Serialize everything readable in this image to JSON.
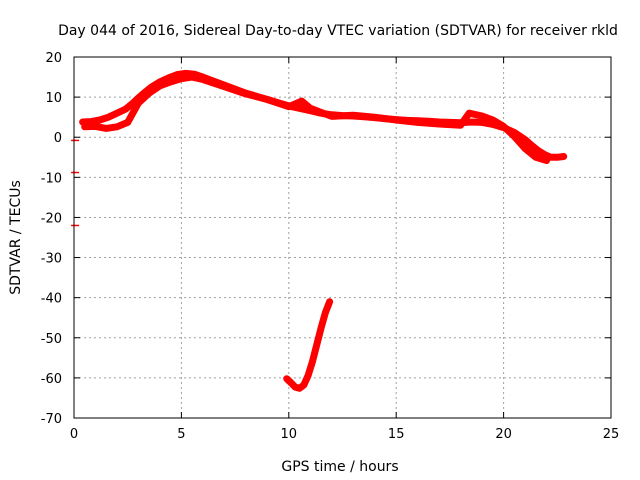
{
  "chart_data": {
    "type": "line",
    "title": "Day 044 of 2016, Sidereal Day-to-day VTEC variation (SDTVAR) for receiver rkld",
    "xlabel": "GPS time / hours",
    "ylabel": "SDTVAR / TECUs",
    "xlim": [
      0,
      25
    ],
    "ylim": [
      -70,
      20
    ],
    "xticks": [
      0,
      5,
      10,
      15,
      20,
      25
    ],
    "yticks": [
      -70,
      -60,
      -50,
      -40,
      -30,
      -20,
      -10,
      0,
      10,
      20
    ],
    "grid": true,
    "series_color": "#ff0000",
    "series": [
      {
        "name": "main-trace-a",
        "x": [
          0.4,
          0.8,
          1.2,
          1.6,
          2.0,
          2.4,
          2.7,
          3.0,
          3.3,
          3.6,
          4.0,
          4.4,
          4.8,
          5.2,
          5.6,
          6.0,
          6.5,
          7.0,
          7.5,
          8.0,
          8.5,
          9.0,
          9.5,
          10.0,
          10.5,
          11.0,
          11.5,
          12.0,
          12.5,
          13.0,
          13.5,
          14.0,
          14.5,
          15.0,
          15.5,
          16.0,
          16.5,
          17.0,
          17.5,
          18.0,
          18.5,
          19.0,
          19.5,
          20.0,
          20.5,
          21.0,
          21.3,
          21.6,
          21.9,
          22.2,
          22.5,
          22.8
        ],
        "y": [
          3.8,
          3.9,
          4.3,
          5.0,
          6.0,
          7.0,
          8.3,
          9.8,
          11.2,
          12.5,
          13.8,
          14.8,
          15.6,
          15.9,
          15.7,
          15.0,
          14.0,
          13.0,
          12.0,
          11.0,
          10.2,
          9.4,
          8.6,
          7.8,
          7.2,
          6.6,
          6.0,
          5.6,
          5.4,
          5.3,
          5.1,
          4.9,
          4.6,
          4.4,
          4.2,
          4.1,
          4.0,
          3.8,
          3.7,
          3.6,
          3.8,
          3.7,
          3.2,
          2.4,
          1.2,
          -0.6,
          -2.0,
          -3.3,
          -4.3,
          -5.0,
          -5.0,
          -4.8
        ]
      },
      {
        "name": "main-trace-b",
        "x": [
          0.5,
          1.0,
          1.5,
          2.0,
          2.5,
          3.0,
          3.5,
          4.0,
          4.5,
          5.0,
          5.5,
          6.0,
          7.0,
          8.0,
          9.0,
          10.0,
          10.6,
          11.0,
          11.5,
          12.0,
          13.0,
          14.0,
          15.0,
          16.0,
          17.0,
          18.0,
          18.4,
          19.0,
          19.5,
          20.0,
          20.5,
          21.0,
          21.5,
          22.0
        ],
        "y": [
          2.6,
          2.7,
          2.2,
          2.6,
          3.7,
          8.5,
          11.0,
          12.8,
          13.8,
          14.6,
          15.0,
          14.4,
          12.6,
          10.8,
          9.4,
          7.6,
          9.0,
          7.2,
          6.2,
          5.2,
          5.5,
          5.0,
          4.3,
          3.7,
          3.3,
          3.0,
          6.0,
          5.3,
          4.3,
          2.7,
          0.2,
          -2.8,
          -5.0,
          -5.8
        ]
      },
      {
        "name": "dip-trace",
        "x": [
          9.9,
          10.1,
          10.3,
          10.5,
          10.7,
          10.9,
          11.1,
          11.3,
          11.5,
          11.7,
          11.9
        ],
        "y": [
          -60.2,
          -61.2,
          -62.3,
          -62.6,
          -61.8,
          -59.4,
          -56.0,
          -51.8,
          -47.6,
          -43.8,
          -41.0
        ]
      }
    ],
    "outliers": [
      {
        "x": 0.05,
        "y": -0.8
      },
      {
        "x": 0.05,
        "y": -8.8
      },
      {
        "x": 0.05,
        "y": -22.0
      }
    ]
  }
}
